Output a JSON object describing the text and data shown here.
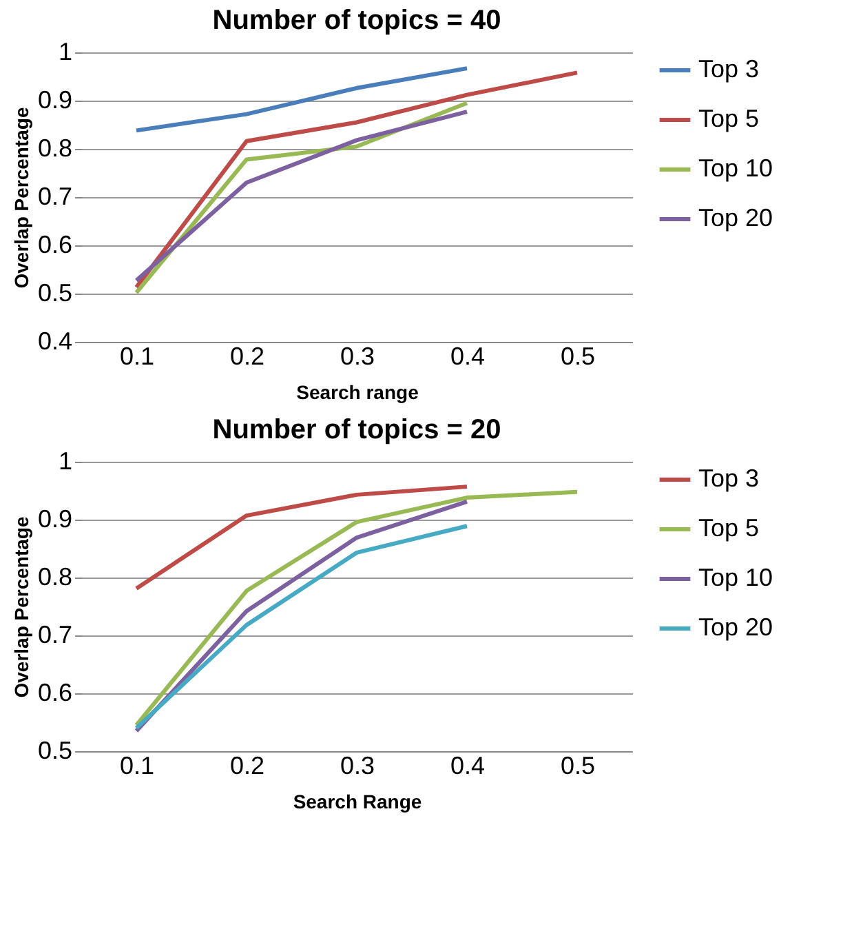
{
  "chart_data": [
    {
      "type": "line",
      "title": "Number of topics = 40",
      "xlabel": "Search range",
      "ylabel": "Overlap Percentage",
      "categories": [
        "0.1",
        "0.2",
        "0.3",
        "0.4",
        "0.5"
      ],
      "ylim": [
        0.4,
        1
      ],
      "yticks": [
        0.4,
        0.5,
        0.6,
        0.7,
        0.8,
        0.9,
        1
      ],
      "grid": "y",
      "legend": "right",
      "series": [
        {
          "name": "Top 3",
          "color": "#4a7ebb",
          "values": [
            0.838,
            0.872,
            0.926,
            0.967,
            null
          ]
        },
        {
          "name": "Top 5",
          "color": "#be4b48",
          "values": [
            0.513,
            0.816,
            0.855,
            0.912,
            0.958
          ]
        },
        {
          "name": "Top 10",
          "color": "#98b954",
          "values": [
            0.502,
            0.778,
            0.805,
            0.895,
            null
          ]
        },
        {
          "name": "Top 20",
          "color": "#7d60a0",
          "values": [
            0.527,
            0.73,
            0.818,
            0.877,
            null
          ]
        }
      ]
    },
    {
      "type": "line",
      "title": "Number of topics = 20",
      "xlabel": "Search Range",
      "ylabel": "Overlap Percentage",
      "categories": [
        "0.1",
        "0.2",
        "0.3",
        "0.4",
        "0.5"
      ],
      "ylim": [
        0.5,
        1
      ],
      "yticks": [
        0.5,
        0.6,
        0.7,
        0.8,
        0.9,
        1
      ],
      "grid": "y",
      "legend": "right",
      "series": [
        {
          "name": "Top 3",
          "color": "#be4b48",
          "values": [
            0.781,
            0.907,
            0.943,
            0.957,
            null
          ]
        },
        {
          "name": "Top 5",
          "color": "#98b954",
          "values": [
            0.545,
            0.777,
            0.896,
            0.938,
            0.948
          ]
        },
        {
          "name": "Top 10",
          "color": "#7d60a0",
          "values": [
            0.535,
            0.742,
            0.869,
            0.931,
            null
          ]
        },
        {
          "name": "Top 20",
          "color": "#46aac5",
          "values": [
            0.54,
            0.718,
            0.843,
            0.889,
            null
          ]
        }
      ]
    }
  ]
}
